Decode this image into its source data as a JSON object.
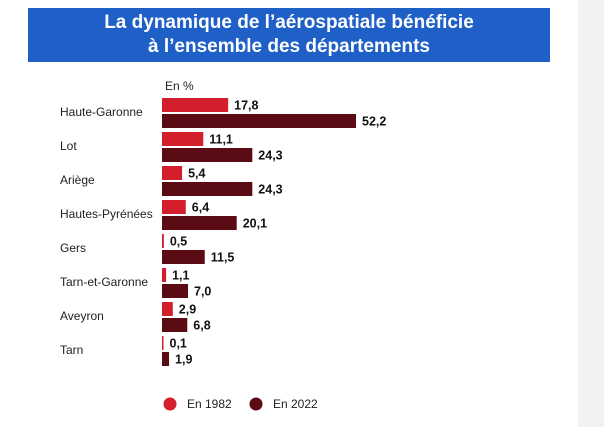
{
  "chart_data": {
    "type": "bar",
    "orientation": "horizontal",
    "title": [
      "La dynamique de l’aérospatiale bénéficie",
      "à l’ensemble des départements"
    ],
    "unit_label": "En %",
    "categories": [
      "Haute-Garonne",
      "Lot",
      "Ariège",
      "Hautes-Pyrénées",
      "Gers",
      "Tarn-et-Garonne",
      "Aveyron",
      "Tarn"
    ],
    "series": [
      {
        "name": "En 1982",
        "color": "#d21f2b",
        "values": [
          17.8,
          11.1,
          5.4,
          6.4,
          0.5,
          1.1,
          2.9,
          0.1
        ],
        "value_labels": [
          "17,8",
          "11,1",
          "5,4",
          "6,4",
          "0,5",
          "1,1",
          "2,9",
          "0,1"
        ]
      },
      {
        "name": "En 2022",
        "color": "#5b0b13",
        "values": [
          52.2,
          24.3,
          24.3,
          20.1,
          11.5,
          7.0,
          6.8,
          1.9
        ],
        "value_labels": [
          "52,2",
          "24,3",
          "24,3",
          "20,1",
          "11,5",
          "7,0",
          "6,8",
          "1,9"
        ]
      }
    ]
  }
}
